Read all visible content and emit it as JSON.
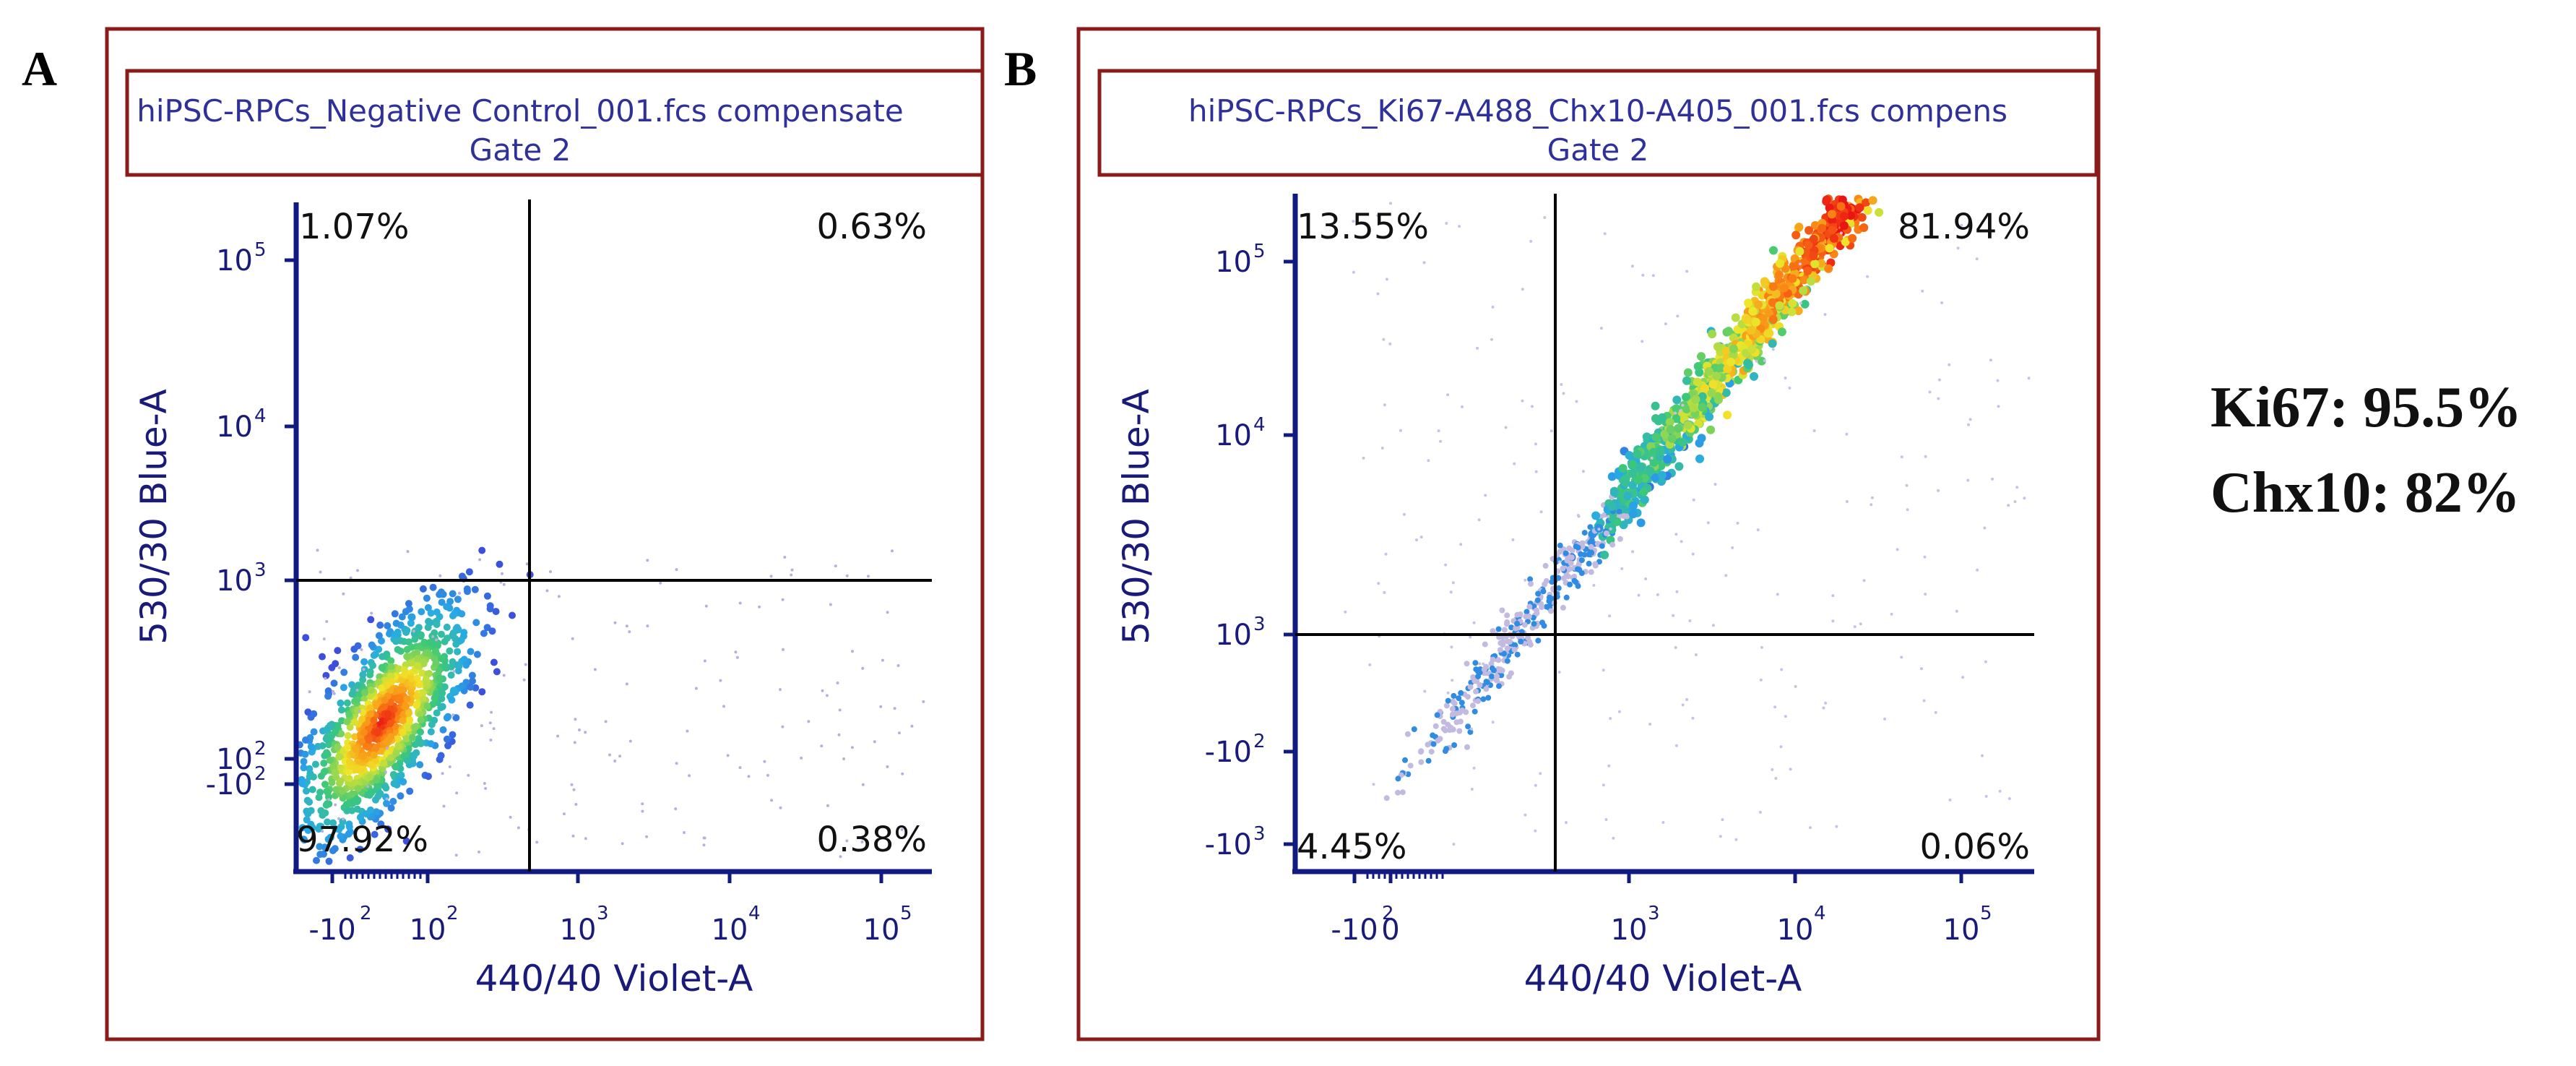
{
  "colors": {
    "frame": "#8b1a1a",
    "axis": "#1a1a7a",
    "gate": "#000000"
  },
  "summary": {
    "line1": "Ki67: 95.5%",
    "line2": "Chx10: 82%"
  },
  "chart_data": [
    {
      "type": "scatter",
      "panel_label": "A",
      "header_line1": "hiPSC-RPCs_Negative Control_001.fcs compensate",
      "header_line2": "Gate 2",
      "xlabel": "440/40 Violet-A",
      "ylabel": "530/30 Blue-A",
      "scale": "biexponential (log)",
      "x_ticks": [
        {
          "base": "-10",
          "exp": "2"
        },
        {
          "base": "10",
          "exp": "2"
        },
        {
          "base": "10",
          "exp": "3"
        },
        {
          "base": "10",
          "exp": "4"
        },
        {
          "base": "10",
          "exp": "5"
        }
      ],
      "y_ticks": [
        {
          "base": "-10",
          "exp": "2"
        },
        {
          "base": "10",
          "exp": "2"
        },
        {
          "base": "10",
          "exp": "3"
        },
        {
          "base": "10",
          "exp": "4"
        },
        {
          "base": "10",
          "exp": "5"
        }
      ],
      "gate": {
        "x": 500,
        "y": 1000
      },
      "quadrants": {
        "upper_left": "1.07%",
        "upper_right": "0.63%",
        "lower_left": "97.92%",
        "lower_right": "0.38%"
      },
      "population": "dense cluster at low fluorescence (~10^1-10^2.5 on both axes), below both gates"
    },
    {
      "type": "scatter",
      "panel_label": "B",
      "header_line1": "hiPSC-RPCs_Ki67-A488_Chx10-A405_001.fcs compens",
      "header_line2": "Gate 2",
      "xlabel": "440/40 Violet-A",
      "ylabel": "530/30 Blue-A",
      "scale": "biexponential (log)",
      "x_ticks": [
        {
          "base": "-10",
          "exp": "2"
        },
        {
          "base": "0",
          "exp": ""
        },
        {
          "base": "10",
          "exp": "3"
        },
        {
          "base": "10",
          "exp": "4"
        },
        {
          "base": "10",
          "exp": "5"
        }
      ],
      "y_ticks": [
        {
          "base": "-10",
          "exp": "3"
        },
        {
          "base": "-10",
          "exp": "2"
        },
        {
          "base": "10",
          "exp": "3"
        },
        {
          "base": "10",
          "exp": "4"
        },
        {
          "base": "10",
          "exp": "5"
        }
      ],
      "gate": {
        "x": 500,
        "y": 1000
      },
      "quadrants": {
        "upper_left": "13.55%",
        "upper_right": "81.94%",
        "lower_left": "4.45%",
        "lower_right": "0.06%"
      },
      "population": "diagonal band from ~10^2 to ~10^4.5, densest in upper-right quadrant"
    }
  ]
}
